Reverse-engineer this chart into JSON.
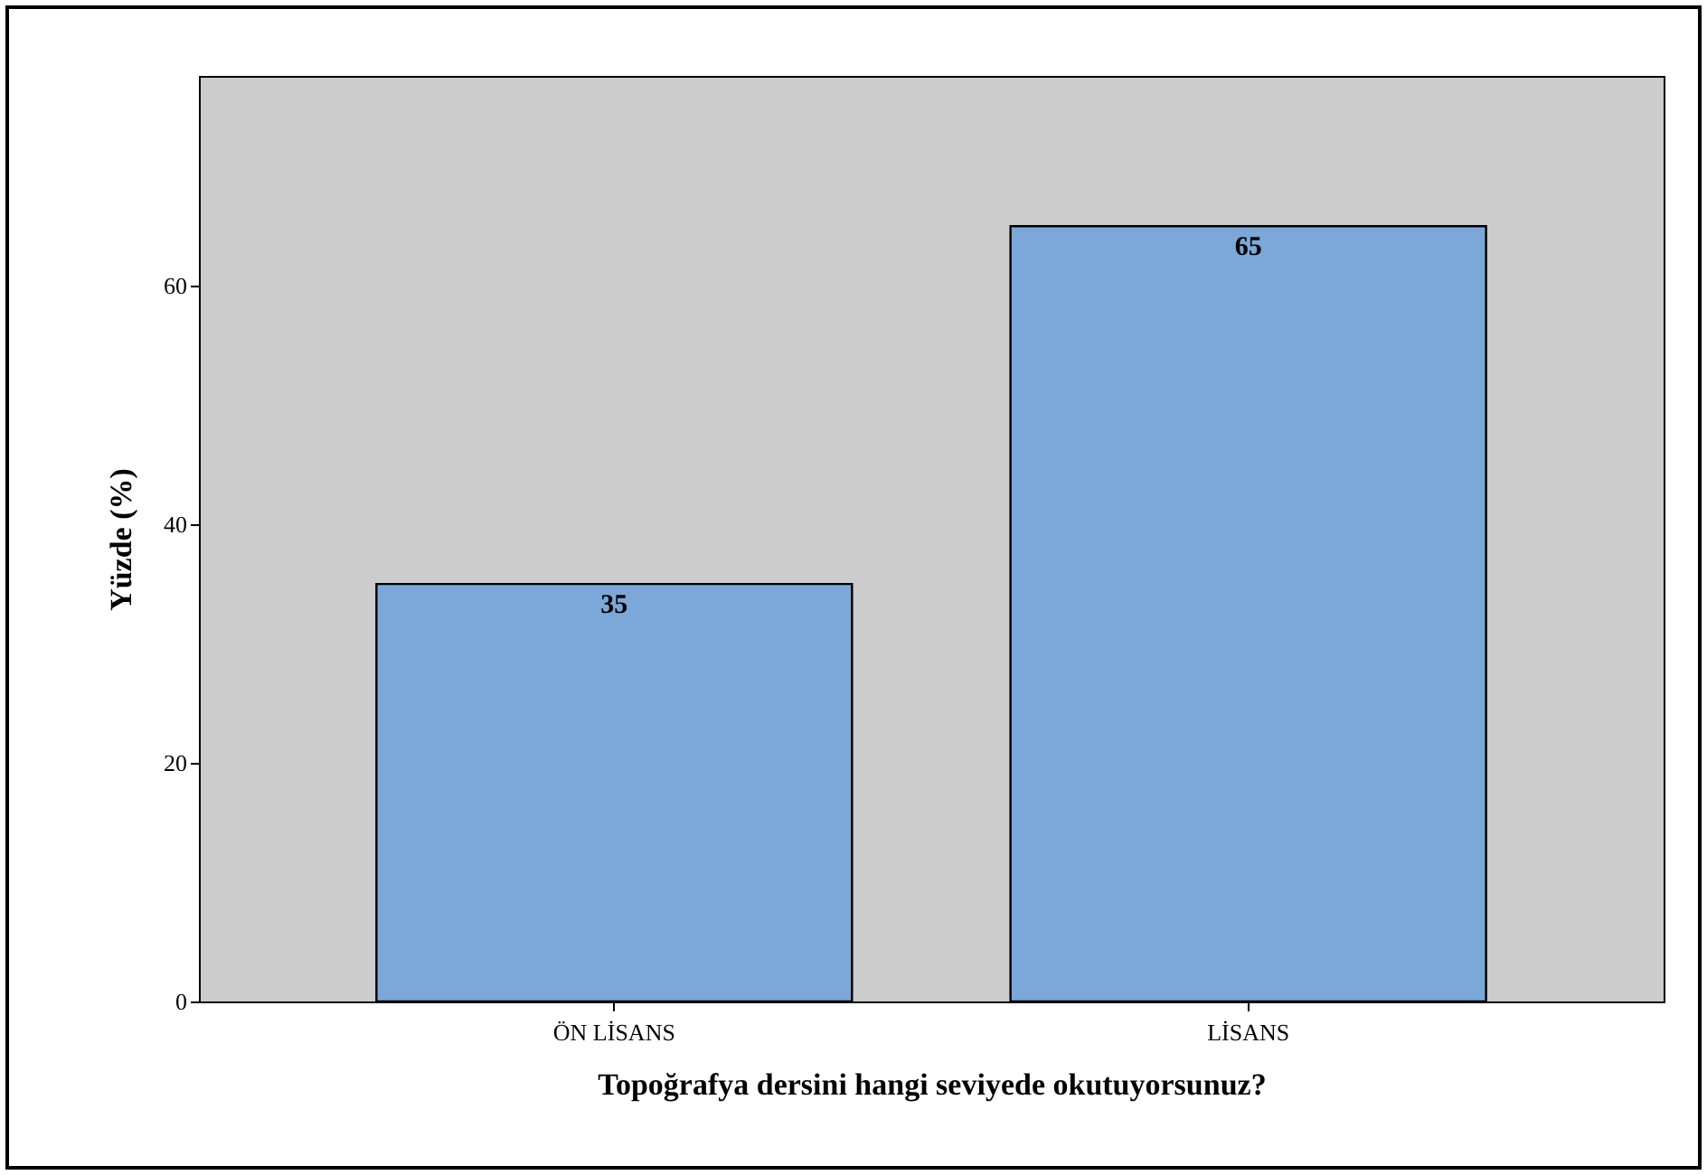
{
  "chart_data": {
    "type": "bar",
    "xlabel": "Topoğrafya dersini hangi seviyede okutuyorsunuz?",
    "ylabel": "Yüzde (%)",
    "categories": [
      "ÖN LİSANS",
      "LİSANS"
    ],
    "values": [
      35,
      65
    ],
    "color": "#7ba8d8",
    "ylim": [
      0,
      77.6
    ],
    "yticks": [
      0,
      20,
      40,
      60
    ],
    "data_labels": true,
    "grid": false
  }
}
